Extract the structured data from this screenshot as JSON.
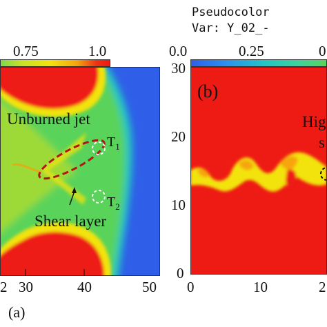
{
  "header": {
    "plot_type": "Pseudocolor",
    "var_label": "Var: Y_02_-"
  },
  "colorbar_left": {
    "ticks": [
      "0.75",
      "1.0"
    ]
  },
  "colorbar_right": {
    "ticks": [
      "0.0",
      "0.25",
      "0"
    ]
  },
  "panel_a": {
    "label": "(a)",
    "x_ticks": [
      "30",
      "40",
      "50"
    ],
    "x_tick_partial": "2",
    "annotations": {
      "unburned_jet": "Unburned jet",
      "shear_layer": "Shear layer",
      "t1": "T",
      "t1_sub": "1",
      "t2": "T",
      "t2_sub": "2"
    }
  },
  "panel_b": {
    "label": "(b)",
    "y_ticks": [
      "30",
      "20",
      "10",
      "0"
    ],
    "x_ticks": [
      "0",
      "10"
    ],
    "x_tick_partial": "2",
    "annotation_line1": "Hig",
    "annotation_line2": "s"
  },
  "colors": {
    "red": "#ee1a14",
    "yellow": "#f2e30f",
    "green": "#5ad35a",
    "cyan": "#21c6c3",
    "blue": "#2f5fe8"
  }
}
